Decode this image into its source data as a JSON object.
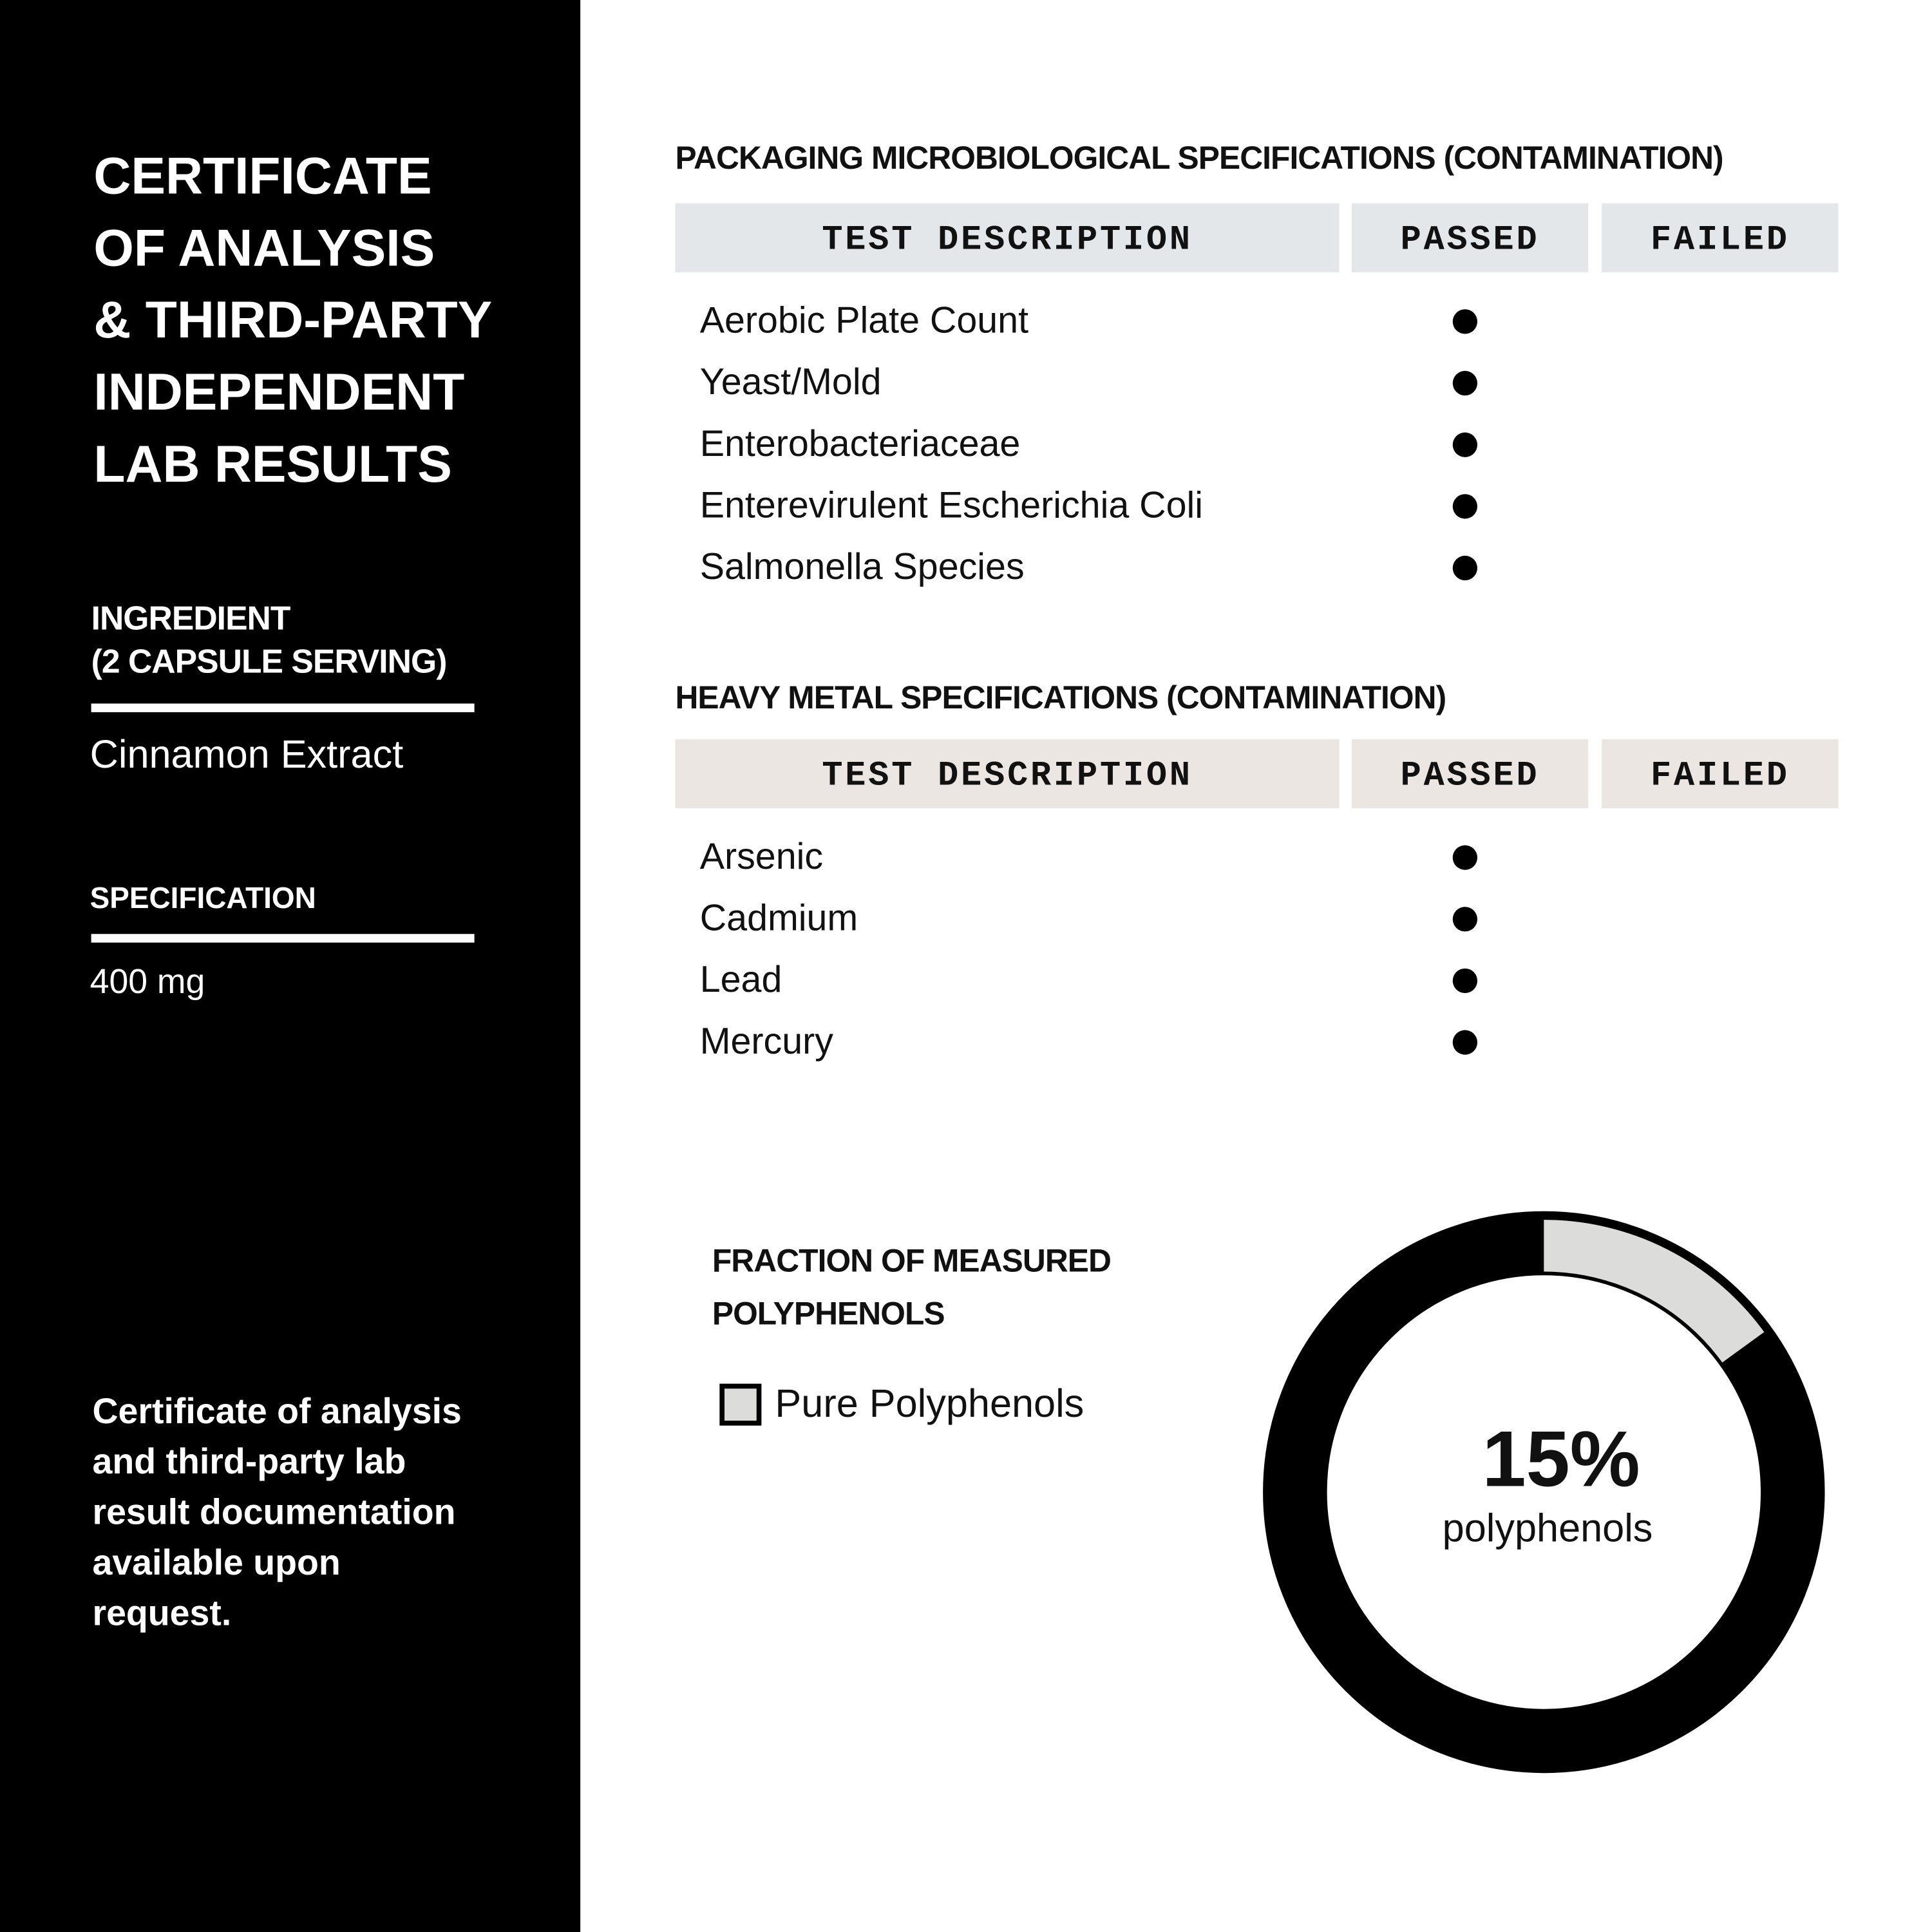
{
  "sidebar": {
    "title_lines": [
      "CERTIFICATE",
      "OF ANALYSIS",
      "& THIRD-PARTY",
      "INDEPENDENT",
      "LAB RESULTS"
    ],
    "ingredient_label_lines": [
      "INGREDIENT",
      "(2 CAPSULE SERVING)"
    ],
    "ingredient": "Cinnamon Extract",
    "specification_label": "SPECIFICATION",
    "specification": "400 mg",
    "note_lines": [
      "Certificate of analysis",
      "and third-party lab",
      "result documentation",
      "available upon",
      "request."
    ]
  },
  "tables": [
    {
      "title": "PACKAGING MICROBIOLOGICAL SPECIFICATIONS (CONTAMINATION)",
      "header_color": "#e4e7e9",
      "columns": [
        "TEST DESCRIPTION",
        "PASSED",
        "FAILED"
      ],
      "rows": [
        "Aerobic Plate Count",
        "Yeast/Mold",
        "Enterobacteriaceae",
        "Enterevirulent Escherichia Coli",
        "Salmonella Species"
      ]
    },
    {
      "title": "HEAVY METAL SPECIFICATIONS (CONTAMINATION)",
      "header_color": "#ebe6e1",
      "columns": [
        "TEST DESCRIPTION",
        "PASSED",
        "FAILED"
      ],
      "rows": [
        "Arsenic",
        "Cadmium",
        "Lead",
        "Mercury"
      ]
    }
  ],
  "polyphenols": {
    "title_lines": [
      "FRACTION OF MEASURED",
      "POLYPHENOLS"
    ],
    "legend": "Pure Polyphenols",
    "value": 15,
    "value_label": "15%",
    "caption": "polyphenols",
    "color": "#dcdcda"
  }
}
